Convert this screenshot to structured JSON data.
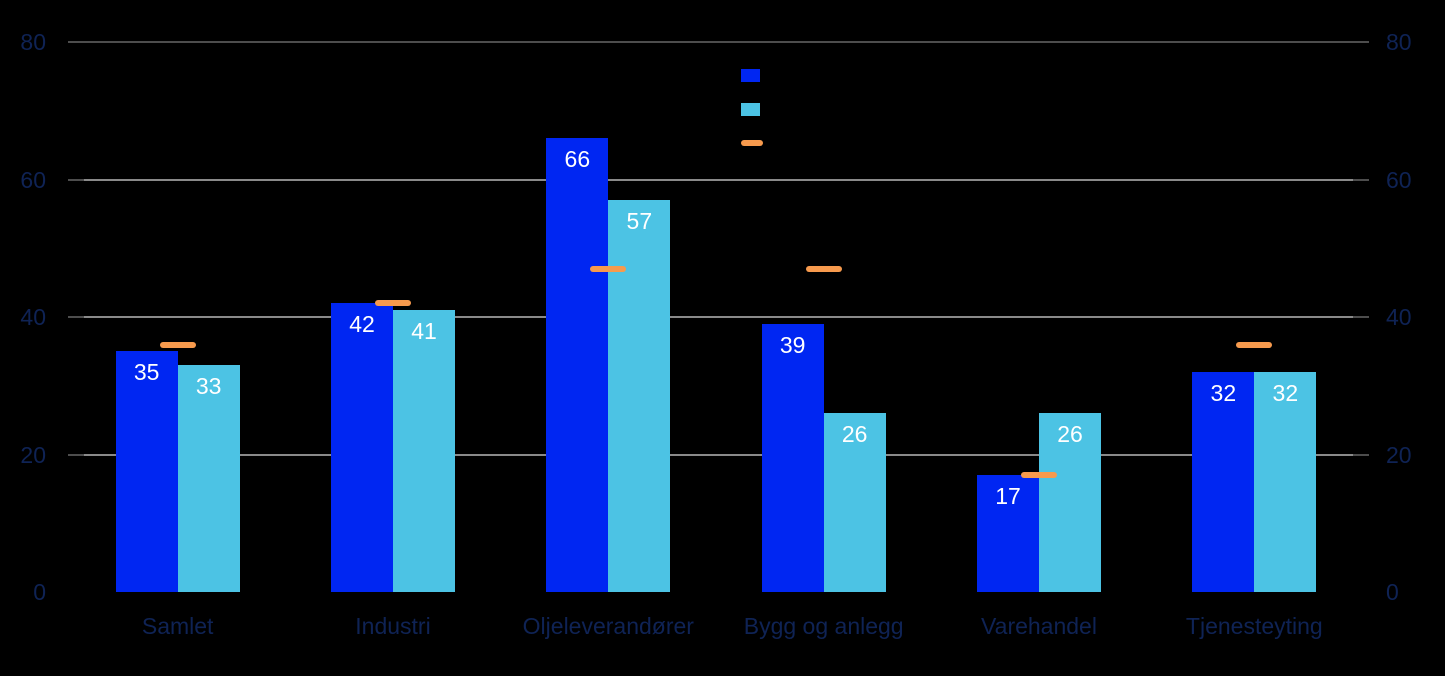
{
  "chart_data": {
    "type": "bar",
    "title": "",
    "categories": [
      "Samlet",
      "Industri",
      "Oljeleverandører",
      "Bygg og anlegg",
      "Varehandel",
      "Tjenesteyting"
    ],
    "series": [
      {
        "name": "",
        "type": "bar",
        "color": "#0026f2",
        "values": [
          35,
          42,
          66,
          39,
          17,
          32
        ]
      },
      {
        "name": "",
        "type": "bar",
        "color": "#4cc3e4",
        "values": [
          33,
          41,
          57,
          26,
          26,
          32
        ]
      },
      {
        "name": "",
        "type": "dash-marker",
        "color": "#f79a4d",
        "values": [
          36,
          42,
          47,
          47,
          17,
          36
        ]
      }
    ],
    "ylim": [
      0,
      80
    ],
    "yticks": [
      0,
      20,
      40,
      60,
      80
    ],
    "y_axis_sides": [
      "left",
      "right"
    ],
    "grid": true,
    "legend_position": "top-center",
    "colors": {
      "background": "#000000",
      "axis_label": "#0f2355",
      "grid": "#8a8a8a",
      "grid_top": "#4d4d4d",
      "tick": "#4d4d4d",
      "bar_value_label": "#ffffff"
    }
  }
}
